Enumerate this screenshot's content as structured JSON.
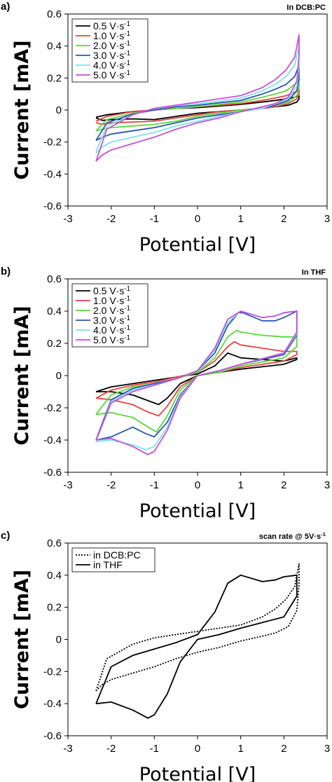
{
  "chart_data": [
    {
      "panel_label": "a)",
      "annotation": "In DCB:PC",
      "type": "line",
      "xlabel": "Potential [V]",
      "ylabel": "Current [mA]",
      "xlim": [
        -3,
        3
      ],
      "ylim": [
        -0.6,
        0.6
      ],
      "xticks": [
        "-3",
        "-2",
        "-1",
        "0",
        "1",
        "2",
        "3"
      ],
      "yticks": [
        "0.6",
        "0.4",
        "0.2",
        "0",
        "-0.2",
        "-0.4",
        "-0.6"
      ],
      "legend_position": "top-left",
      "series": [
        {
          "name": "0.5 V·s-1",
          "color": "#000000",
          "x": [
            -2.35,
            -2.1,
            -1.5,
            -1.0,
            -0.5,
            0.0,
            0.5,
            1.0,
            1.5,
            1.8,
            2.05,
            2.25,
            2.35,
            2.35,
            2.3,
            2.1,
            1.8,
            1.5,
            1.0,
            0.5,
            0.0,
            -0.5,
            -1.0,
            -1.5,
            -2.0,
            -2.2,
            -2.35
          ],
          "y": [
            -0.045,
            -0.03,
            -0.01,
            0.0,
            0.01,
            0.015,
            0.025,
            0.035,
            0.05,
            0.06,
            0.07,
            0.08,
            0.09,
            0.07,
            0.05,
            0.03,
            0.02,
            0.01,
            0.0,
            -0.01,
            -0.02,
            -0.04,
            -0.06,
            -0.055,
            -0.06,
            -0.065,
            -0.05
          ]
        },
        {
          "name": "1.0 V·s-1",
          "color": "#e8413f",
          "x": [
            -2.35,
            -2.1,
            -1.5,
            -1.0,
            -0.5,
            0.0,
            0.5,
            1.0,
            1.5,
            1.8,
            2.05,
            2.25,
            2.35,
            2.35,
            2.3,
            2.1,
            1.8,
            1.5,
            1.0,
            0.5,
            0.0,
            -0.5,
            -1.0,
            -1.5,
            -2.0,
            -2.2,
            -2.35
          ],
          "y": [
            -0.07,
            -0.04,
            -0.01,
            0.0,
            0.01,
            0.02,
            0.03,
            0.04,
            0.06,
            0.075,
            0.09,
            0.11,
            0.13,
            0.1,
            0.07,
            0.04,
            0.02,
            0.01,
            0.0,
            -0.01,
            -0.03,
            -0.05,
            -0.07,
            -0.075,
            -0.08,
            -0.09,
            -0.08
          ]
        },
        {
          "name": "2.0 V·s-1",
          "color": "#59d83a",
          "x": [
            -2.35,
            -2.1,
            -1.5,
            -1.0,
            -0.5,
            0.0,
            0.5,
            1.0,
            1.5,
            1.8,
            2.05,
            2.25,
            2.35,
            2.35,
            2.3,
            2.1,
            1.8,
            1.5,
            1.0,
            0.5,
            0.0,
            -0.5,
            -1.0,
            -1.5,
            -2.0,
            -2.2,
            -2.35
          ],
          "y": [
            -0.13,
            -0.06,
            -0.02,
            0.0,
            0.01,
            0.02,
            0.035,
            0.05,
            0.08,
            0.1,
            0.12,
            0.16,
            0.2,
            0.14,
            0.09,
            0.05,
            0.03,
            0.01,
            0.0,
            -0.02,
            -0.04,
            -0.07,
            -0.09,
            -0.1,
            -0.11,
            -0.12,
            -0.13
          ]
        },
        {
          "name": "3.0 V·s-1",
          "color": "#2a56b8",
          "x": [
            -2.35,
            -2.1,
            -1.5,
            -1.0,
            -0.5,
            0.0,
            0.5,
            1.0,
            1.5,
            1.8,
            2.05,
            2.25,
            2.35,
            2.35,
            2.3,
            2.1,
            1.8,
            1.5,
            1.0,
            0.5,
            0.0,
            -0.5,
            -1.0,
            -1.5,
            -2.0,
            -2.2,
            -2.35
          ],
          "y": [
            -0.19,
            -0.08,
            -0.025,
            0.0,
            0.02,
            0.03,
            0.045,
            0.06,
            0.1,
            0.13,
            0.16,
            0.21,
            0.28,
            0.2,
            0.12,
            0.06,
            0.03,
            0.01,
            -0.01,
            -0.03,
            -0.05,
            -0.08,
            -0.11,
            -0.13,
            -0.15,
            -0.17,
            -0.19
          ]
        },
        {
          "name": "4.0 V·s-1",
          "color": "#7ee3ea",
          "x": [
            -2.35,
            -2.1,
            -1.5,
            -1.0,
            -0.5,
            0.0,
            0.5,
            1.0,
            1.5,
            1.8,
            2.05,
            2.25,
            2.35,
            2.35,
            2.3,
            2.1,
            1.8,
            1.5,
            1.0,
            0.5,
            0.0,
            -0.5,
            -1.0,
            -1.5,
            -2.0,
            -2.2,
            -2.35
          ],
          "y": [
            -0.26,
            -0.1,
            -0.03,
            0.01,
            0.03,
            0.04,
            0.055,
            0.075,
            0.12,
            0.16,
            0.21,
            0.28,
            0.4,
            0.28,
            0.15,
            0.07,
            0.04,
            0.01,
            -0.01,
            -0.04,
            -0.07,
            -0.1,
            -0.14,
            -0.17,
            -0.2,
            -0.23,
            -0.27
          ]
        },
        {
          "name": "5.0 V·s-1",
          "color": "#c84fd8",
          "x": [
            -2.35,
            -2.1,
            -1.5,
            -1.0,
            -0.5,
            0.0,
            0.5,
            1.0,
            1.5,
            1.8,
            2.05,
            2.25,
            2.35,
            2.35,
            2.3,
            2.1,
            1.8,
            1.5,
            1.0,
            0.5,
            0.0,
            -0.5,
            -1.0,
            -1.5,
            -2.0,
            -2.2,
            -2.35
          ],
          "y": [
            -0.32,
            -0.12,
            -0.03,
            0.01,
            0.03,
            0.05,
            0.07,
            0.09,
            0.14,
            0.19,
            0.25,
            0.33,
            0.47,
            0.34,
            0.18,
            0.08,
            0.04,
            0.02,
            -0.01,
            -0.05,
            -0.08,
            -0.12,
            -0.17,
            -0.21,
            -0.25,
            -0.28,
            -0.32
          ]
        }
      ]
    },
    {
      "panel_label": "b)",
      "annotation": "In THF",
      "type": "line",
      "xlabel": "Potential [V]",
      "ylabel": "Current [mA]",
      "xlim": [
        -3,
        3
      ],
      "ylim": [
        -0.6,
        0.6
      ],
      "xticks": [
        "-3",
        "-2",
        "-1",
        "0",
        "1",
        "2",
        "3"
      ],
      "yticks": [
        "0.6",
        "0.4",
        "0.2",
        "0",
        "-0.2",
        "-0.4",
        "-0.6"
      ],
      "legend_position": "top-left",
      "series": [
        {
          "name": "0.5 V·s-1",
          "color": "#000000",
          "x": [
            -2.35,
            -2.0,
            -1.5,
            -1.0,
            -0.5,
            0.0,
            0.4,
            0.7,
            1.0,
            1.5,
            2.0,
            2.3,
            2.3,
            2.0,
            1.0,
            0.5,
            0.0,
            -0.4,
            -0.7,
            -0.9,
            -1.2,
            -1.5,
            -2.0,
            -2.35
          ],
          "y": [
            -0.1,
            -0.07,
            -0.05,
            -0.03,
            -0.01,
            0.01,
            0.06,
            0.14,
            0.11,
            0.1,
            0.09,
            0.11,
            0.1,
            0.07,
            0.04,
            0.02,
            0.0,
            -0.05,
            -0.14,
            -0.18,
            -0.15,
            -0.12,
            -0.1,
            -0.1
          ]
        },
        {
          "name": "1.0 V·s-1",
          "color": "#e8413f",
          "x": [
            -2.35,
            -2.0,
            -1.5,
            -1.0,
            -0.5,
            0.0,
            0.4,
            0.7,
            0.85,
            1.0,
            1.5,
            2.0,
            2.3,
            2.3,
            2.0,
            1.0,
            0.5,
            0.0,
            -0.4,
            -0.7,
            -0.9,
            -1.2,
            -1.5,
            -2.0,
            -2.35
          ],
          "y": [
            -0.14,
            -0.09,
            -0.06,
            -0.04,
            -0.01,
            0.02,
            0.09,
            0.18,
            0.21,
            0.19,
            0.17,
            0.15,
            0.15,
            0.13,
            0.09,
            0.05,
            0.02,
            0.0,
            -0.07,
            -0.19,
            -0.25,
            -0.22,
            -0.18,
            -0.15,
            -0.14
          ]
        },
        {
          "name": "2.0 V·s-1",
          "color": "#59d83a",
          "x": [
            -2.35,
            -2.0,
            -1.5,
            -1.0,
            -0.5,
            0.0,
            0.4,
            0.7,
            0.9,
            1.0,
            1.5,
            2.0,
            2.3,
            2.3,
            2.0,
            1.0,
            0.5,
            0.0,
            -0.4,
            -0.7,
            -0.95,
            -1.2,
            -1.5,
            -2.0,
            -2.35
          ],
          "y": [
            -0.24,
            -0.12,
            -0.07,
            -0.05,
            -0.02,
            0.02,
            0.11,
            0.24,
            0.28,
            0.27,
            0.25,
            0.24,
            0.24,
            0.18,
            0.11,
            0.06,
            0.02,
            0.0,
            -0.09,
            -0.25,
            -0.35,
            -0.31,
            -0.26,
            -0.23,
            -0.24
          ]
        },
        {
          "name": "3.0 V·s-1",
          "color": "#2a56b8",
          "x": [
            -2.35,
            -2.0,
            -1.5,
            -1.0,
            -0.5,
            0.0,
            0.4,
            0.7,
            0.95,
            1.05,
            1.5,
            1.8,
            2.0,
            2.3,
            2.3,
            2.0,
            1.0,
            0.5,
            0.0,
            -0.4,
            -0.7,
            -1.0,
            -1.2,
            -1.5,
            -2.0,
            -2.35
          ],
          "y": [
            -0.4,
            -0.15,
            -0.08,
            -0.05,
            -0.02,
            0.03,
            0.14,
            0.31,
            0.39,
            0.39,
            0.34,
            0.34,
            0.36,
            0.4,
            0.25,
            0.13,
            0.07,
            0.03,
            0.0,
            -0.12,
            -0.29,
            -0.38,
            -0.36,
            -0.32,
            -0.38,
            -0.4
          ]
        },
        {
          "name": "4.0 V·s-1",
          "color": "#7ee3ea",
          "x": [
            -2.35,
            -2.0,
            -1.5,
            -1.0,
            -0.5,
            0.0,
            0.4,
            0.7,
            1.0,
            1.5,
            1.8,
            2.0,
            2.3,
            2.3,
            2.0,
            1.0,
            0.5,
            0.0,
            -0.4,
            -0.7,
            -1.0,
            -1.2,
            -1.5,
            -2.0,
            -2.35
          ],
          "y": [
            -0.41,
            -0.16,
            -0.09,
            -0.06,
            -0.02,
            0.03,
            0.16,
            0.33,
            0.4,
            0.36,
            0.37,
            0.39,
            0.4,
            0.26,
            0.14,
            0.07,
            0.03,
            0.0,
            -0.13,
            -0.32,
            -0.44,
            -0.46,
            -0.43,
            -0.4,
            -0.41
          ]
        },
        {
          "name": "5.0 V·s-1",
          "color": "#c84fd8",
          "x": [
            -2.35,
            -2.0,
            -1.5,
            -1.0,
            -0.5,
            0.0,
            0.4,
            0.7,
            1.0,
            1.5,
            1.8,
            2.0,
            2.3,
            2.3,
            2.0,
            1.0,
            0.5,
            0.0,
            -0.4,
            -0.7,
            -1.0,
            -1.15,
            -1.5,
            -2.0,
            -2.35
          ],
          "y": [
            -0.4,
            -0.17,
            -0.1,
            -0.06,
            -0.02,
            0.03,
            0.17,
            0.35,
            0.4,
            0.36,
            0.37,
            0.39,
            0.4,
            0.27,
            0.14,
            0.07,
            0.03,
            0.0,
            -0.14,
            -0.34,
            -0.47,
            -0.49,
            -0.44,
            -0.39,
            -0.4
          ]
        }
      ]
    },
    {
      "panel_label": "c)",
      "annotation": "scan rate @ 5V·s-1",
      "type": "line",
      "xlabel": "Potential [V]",
      "ylabel": "Current [mA]",
      "xlim": [
        -3,
        3
      ],
      "ylim": [
        -0.6,
        0.6
      ],
      "xticks": [
        "-3",
        "-2",
        "-1",
        "0",
        "1",
        "2",
        "3"
      ],
      "yticks": [
        "0.6",
        "0.4",
        "0.2",
        "0",
        "-0.2",
        "-0.4",
        "-0.6"
      ],
      "legend_position": "top-left",
      "series": [
        {
          "name": "in DCB:PC",
          "color": "#000000",
          "dash": "2,2",
          "x": [
            -2.35,
            -2.1,
            -1.5,
            -1.0,
            -0.5,
            0.0,
            0.5,
            1.0,
            1.5,
            1.8,
            2.05,
            2.25,
            2.35,
            2.35,
            2.3,
            2.1,
            1.8,
            1.5,
            1.0,
            0.5,
            0.0,
            -0.5,
            -1.0,
            -1.5,
            -2.0,
            -2.2,
            -2.35
          ],
          "y": [
            -0.32,
            -0.12,
            -0.03,
            0.01,
            0.03,
            0.05,
            0.07,
            0.09,
            0.14,
            0.19,
            0.25,
            0.33,
            0.47,
            0.34,
            0.18,
            0.08,
            0.04,
            0.02,
            -0.01,
            -0.05,
            -0.08,
            -0.12,
            -0.17,
            -0.21,
            -0.25,
            -0.28,
            -0.32
          ]
        },
        {
          "name": "in THF",
          "color": "#000000",
          "dash": "",
          "x": [
            -2.35,
            -2.0,
            -1.5,
            -1.0,
            -0.5,
            0.0,
            0.4,
            0.7,
            1.0,
            1.5,
            1.8,
            2.0,
            2.3,
            2.3,
            2.0,
            1.0,
            0.5,
            0.0,
            -0.4,
            -0.7,
            -1.0,
            -1.15,
            -1.5,
            -2.0,
            -2.35
          ],
          "y": [
            -0.4,
            -0.17,
            -0.1,
            -0.06,
            -0.02,
            0.03,
            0.17,
            0.35,
            0.4,
            0.36,
            0.37,
            0.39,
            0.4,
            0.27,
            0.14,
            0.07,
            0.03,
            0.0,
            -0.14,
            -0.34,
            -0.47,
            -0.49,
            -0.44,
            -0.39,
            -0.4
          ]
        }
      ]
    }
  ]
}
